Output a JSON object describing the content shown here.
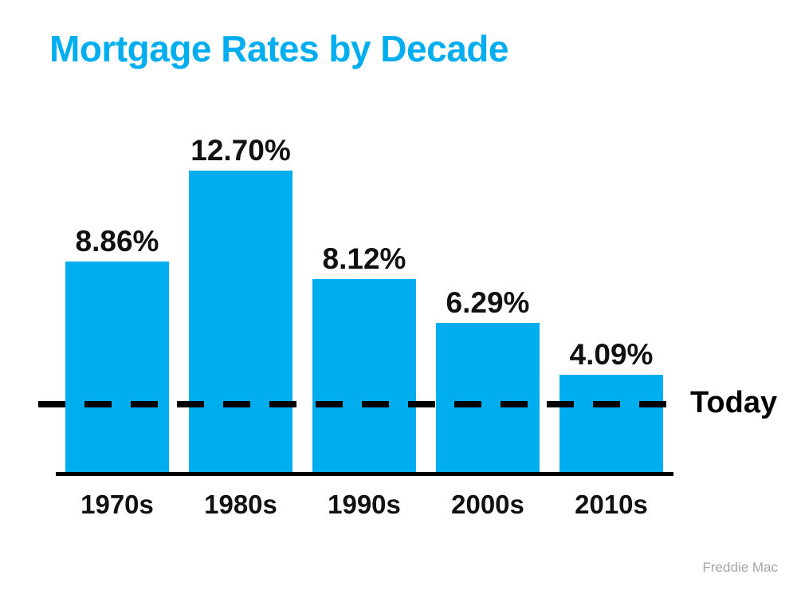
{
  "page": {
    "background_color": "#FFFFFF"
  },
  "title": {
    "text": "Mortgage Rates by Decade",
    "color": "#00AEEF"
  },
  "chart_data": {
    "type": "bar",
    "title": "Mortgage Rates by Decade",
    "categories": [
      "1970s",
      "1980s",
      "1990s",
      "2000s",
      "2010s"
    ],
    "values": [
      8.86,
      12.7,
      8.12,
      6.29,
      4.09
    ],
    "value_labels": [
      "8.86%",
      "12.70%",
      "8.12%",
      "6.29%",
      "4.09%"
    ],
    "xlabel": "",
    "ylabel": "",
    "ylim": [
      0,
      14
    ],
    "grid": false,
    "legend": false,
    "bar_color": "#00AEEF",
    "axis_color": "#000000",
    "label_color": "#111111",
    "annotations": [
      {
        "type": "horizontal-dashed-line",
        "label": "Today",
        "value_estimate": 3.0,
        "color": "#000000"
      }
    ]
  },
  "today_marker": {
    "label": "Today"
  },
  "source": {
    "text": "Freddie Mac",
    "color": "#A6A6A6"
  }
}
